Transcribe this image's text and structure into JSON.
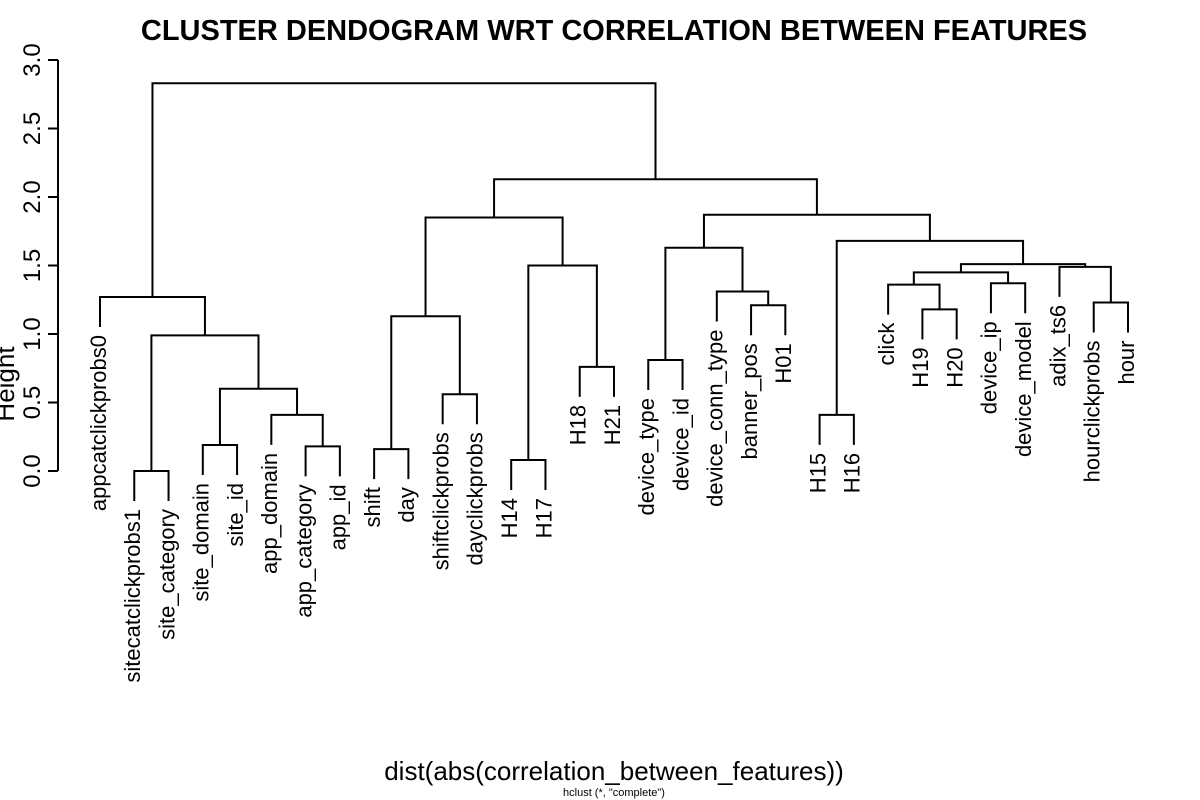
{
  "chart_data": {
    "type": "dendrogram",
    "title": "CLUSTER DENDOGRAM WRT CORRELATION BETWEEN FEATURES",
    "ylabel": "Height",
    "xlabel": "dist(abs(correlation_between_features))",
    "sublabel": "hclust (*, \"complete\")",
    "ylim": [
      0,
      3.0
    ],
    "yticks": [
      "0.0",
      "0.5",
      "1.0",
      "1.5",
      "2.0",
      "2.5",
      "3.0"
    ],
    "grid": false,
    "leaves": [
      "appcatclickprobs0",
      "sitecatclickprobs1",
      "site_category",
      "site_domain",
      "site_id",
      "app_domain",
      "app_category",
      "app_id",
      "shift",
      "day",
      "shiftclickprobs",
      "dayclickprobs",
      "H14",
      "H17",
      "H18",
      "H21",
      "device_type",
      "device_id",
      "device_conn_type",
      "banner_pos",
      "H01",
      "H15",
      "H16",
      "click",
      "H19",
      "H20",
      "device_ip",
      "device_model",
      "adix_ts6",
      "hourclickprobs",
      "hour"
    ],
    "merges": [
      {
        "left": "sitecatclickprobs1",
        "right": "site_category",
        "height": 0.0
      },
      {
        "left": "site_domain",
        "right": "site_id",
        "height": 0.19
      },
      {
        "left": "app_category",
        "right": "app_id",
        "height": 0.18
      },
      {
        "left": "app_domain",
        "right": "m3",
        "height": 0.41
      },
      {
        "left": "m2",
        "right": "m4",
        "height": 0.6
      },
      {
        "left": "m1",
        "right": "m5",
        "height": 0.99
      },
      {
        "left": "appcatclickprobs0",
        "right": "m6",
        "height": 1.27
      },
      {
        "left": "shift",
        "right": "day",
        "height": 0.16
      },
      {
        "left": "shiftclickprobs",
        "right": "dayclickprobs",
        "height": 0.56
      },
      {
        "left": "m8",
        "right": "m9",
        "height": 1.13
      },
      {
        "left": "H14",
        "right": "H17",
        "height": 0.08
      },
      {
        "left": "H18",
        "right": "H21",
        "height": 0.76
      },
      {
        "left": "m11",
        "right": "m12",
        "height": 1.5
      },
      {
        "left": "m10",
        "right": "m13",
        "height": 1.85
      },
      {
        "left": "device_type",
        "right": "device_id",
        "height": 0.81
      },
      {
        "left": "banner_pos",
        "right": "H01",
        "height": 1.21
      },
      {
        "left": "device_conn_type",
        "right": "m16",
        "height": 1.31
      },
      {
        "left": "m15",
        "right": "m17",
        "height": 1.63
      },
      {
        "left": "H15",
        "right": "H16",
        "height": 0.41
      },
      {
        "left": "H19",
        "right": "H20",
        "height": 1.18
      },
      {
        "left": "click",
        "right": "m20",
        "height": 1.36
      },
      {
        "left": "device_ip",
        "right": "device_model",
        "height": 1.37
      },
      {
        "left": "m21",
        "right": "m22",
        "height": 1.45
      },
      {
        "left": "hourclickprobs",
        "right": "hour",
        "height": 1.23
      },
      {
        "left": "adix_ts6",
        "right": "m24",
        "height": 1.49
      },
      {
        "left": "m23",
        "right": "m25",
        "height": 1.51
      },
      {
        "left": "m19",
        "right": "m26",
        "height": 1.68
      },
      {
        "left": "m18",
        "right": "m27",
        "height": 1.87
      },
      {
        "left": "m14",
        "right": "m28",
        "height": 2.13
      },
      {
        "left": "m7",
        "right": "m29",
        "height": 2.83
      }
    ]
  }
}
